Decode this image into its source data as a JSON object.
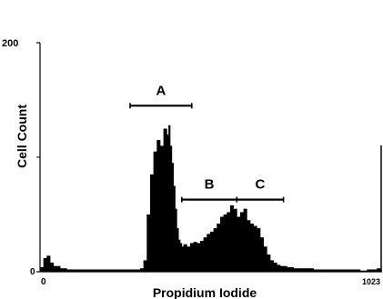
{
  "chart_data": {
    "type": "area",
    "title": "",
    "xlabel": "Propidium Iodide",
    "ylabel": "Cell Count",
    "xlim": [
      0,
      1023
    ],
    "ylim": [
      0,
      200
    ],
    "x_ticks": [
      "0",
      "1023"
    ],
    "y_ticks": [
      "0",
      "200"
    ],
    "grid": false,
    "legend": "none",
    "series_color": "#000000",
    "x": [
      0,
      10,
      20,
      30,
      40,
      60,
      80,
      100,
      150,
      200,
      250,
      280,
      300,
      310,
      320,
      330,
      340,
      350,
      360,
      370,
      380,
      385,
      390,
      395,
      400,
      405,
      410,
      415,
      420,
      425,
      430,
      440,
      450,
      460,
      470,
      480,
      490,
      500,
      510,
      520,
      530,
      540,
      550,
      560,
      570,
      580,
      590,
      600,
      610,
      620,
      630,
      640,
      650,
      660,
      670,
      680,
      690,
      700,
      710,
      720,
      730,
      740,
      750,
      760,
      770,
      780,
      790,
      800,
      820,
      840,
      860,
      880,
      900,
      920,
      940,
      960,
      980,
      1000,
      1010,
      1020
    ],
    "values": [
      4,
      12,
      14,
      8,
      5,
      3,
      2,
      2,
      2,
      2,
      2,
      2,
      3,
      10,
      50,
      85,
      105,
      115,
      110,
      125,
      120,
      128,
      110,
      95,
      75,
      55,
      38,
      28,
      25,
      22,
      24,
      22,
      25,
      26,
      25,
      27,
      30,
      33,
      35,
      38,
      42,
      48,
      50,
      52,
      58,
      55,
      48,
      52,
      55,
      45,
      42,
      40,
      38,
      30,
      22,
      15,
      10,
      8,
      6,
      5,
      5,
      4,
      4,
      3,
      3,
      3,
      3,
      3,
      2,
      2,
      2,
      2,
      2,
      2,
      2,
      1,
      2,
      2,
      3,
      2
    ],
    "regions": [
      {
        "label": "A",
        "x_start": 270,
        "x_end": 455,
        "y": 145
      },
      {
        "label": "B",
        "x_start": 425,
        "x_end": 590,
        "y": 63
      },
      {
        "label": "C",
        "x_start": 590,
        "x_end": 730,
        "y": 63
      }
    ]
  }
}
